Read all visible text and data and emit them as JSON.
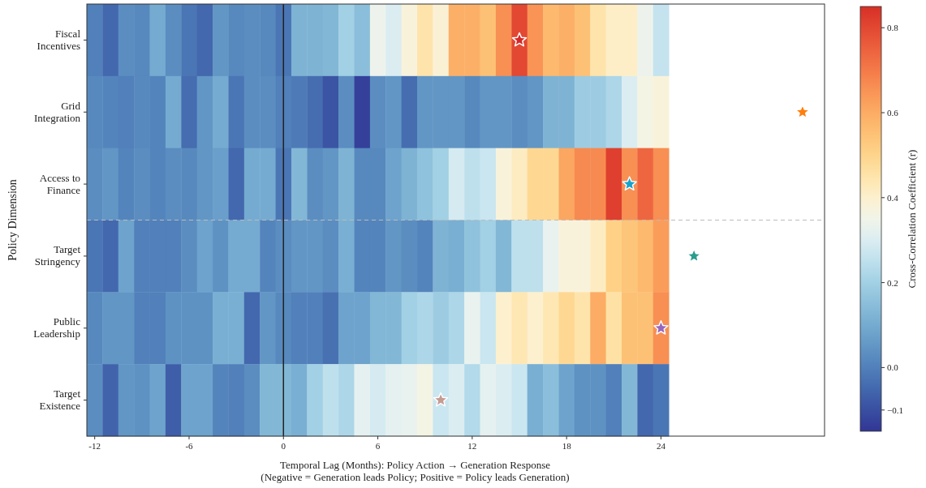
{
  "chart_data": {
    "type": "heatmap",
    "xlabel": "Temporal Lag (Months): Policy Action → Generation Response\n(Negative = Generation leads Policy; Positive = Policy leads Generation)",
    "ylabel": "Policy Dimension",
    "clabel": "Cross-Correlation Coefficient (r)",
    "x": [
      -12,
      -11,
      -10,
      -9,
      -8,
      -7,
      -6,
      -5,
      -4,
      -3,
      -2,
      -1,
      0,
      1,
      2,
      3,
      4,
      5,
      6,
      7,
      8,
      9,
      10,
      11,
      12,
      13,
      14,
      15,
      16,
      17,
      18,
      19,
      20,
      21,
      22,
      23,
      24
    ],
    "xlim": [
      -12.5,
      34.4
    ],
    "xticks": [
      -12,
      -6,
      0,
      6,
      12,
      18,
      24
    ],
    "y_categories": [
      "Fiscal\nIncentives",
      "Grid\nIntegration",
      "Access to\nFinance",
      "Target\nStringency",
      "Public\nLeadership",
      "Target\nExistence"
    ],
    "cells": [
      [
        0.0,
        -0.05,
        0.03,
        0.02,
        0.1,
        0.03,
        -0.02,
        -0.05,
        0.05,
        0.02,
        0.03,
        0.02,
        -0.02,
        0.12,
        0.12,
        0.13,
        0.2,
        0.15,
        0.34,
        0.3,
        0.38,
        0.45,
        0.39,
        0.59,
        0.59,
        0.55,
        0.66,
        0.8,
        0.65,
        0.57,
        0.59,
        0.55,
        0.45,
        0.41,
        0.41,
        0.34,
        0.26
      ],
      [
        0.02,
        0.01,
        0.0,
        0.02,
        0.01,
        0.1,
        -0.04,
        0.05,
        0.1,
        -0.02,
        0.03,
        0.03,
        0.0,
        -0.01,
        -0.04,
        -0.09,
        0.03,
        -0.13,
        0.03,
        0.05,
        -0.04,
        0.05,
        0.05,
        0.05,
        0.02,
        0.05,
        0.05,
        0.03,
        0.05,
        0.12,
        0.12,
        0.19,
        0.19,
        0.22,
        0.3,
        0.36,
        0.38
      ],
      [
        0.03,
        0.05,
        0.01,
        0.03,
        0.01,
        0.03,
        0.02,
        0.05,
        0.07,
        -0.05,
        0.1,
        0.1,
        -0.02,
        0.13,
        0.03,
        0.05,
        0.12,
        0.02,
        0.02,
        0.08,
        0.12,
        0.16,
        0.2,
        0.29,
        0.25,
        0.27,
        0.38,
        0.42,
        0.49,
        0.49,
        0.61,
        0.67,
        0.67,
        0.82,
        0.66,
        0.74,
        0.66
      ],
      [
        -0.02,
        -0.05,
        0.08,
        0.0,
        0.0,
        0.0,
        0.03,
        0.08,
        0.04,
        0.1,
        0.1,
        0.01,
        0.03,
        0.05,
        0.05,
        0.03,
        0.11,
        0.01,
        0.01,
        0.05,
        0.03,
        0.01,
        0.12,
        0.11,
        0.16,
        0.2,
        0.13,
        0.25,
        0.25,
        0.33,
        0.38,
        0.38,
        0.42,
        0.51,
        0.54,
        0.57,
        0.63
      ],
      [
        0.02,
        0.05,
        0.05,
        0.0,
        0.0,
        0.04,
        0.04,
        0.04,
        0.11,
        0.11,
        -0.05,
        0.05,
        0.02,
        0.0,
        0.0,
        -0.03,
        0.08,
        0.08,
        0.13,
        0.13,
        0.2,
        0.22,
        0.19,
        0.22,
        0.33,
        0.27,
        0.4,
        0.44,
        0.4,
        0.44,
        0.49,
        0.45,
        0.6,
        0.46,
        0.55,
        0.55,
        0.66
      ],
      [
        0.03,
        -0.06,
        0.05,
        0.04,
        0.08,
        -0.07,
        0.08,
        0.08,
        0.01,
        0.0,
        0.03,
        0.13,
        0.13,
        0.11,
        0.2,
        0.25,
        0.22,
        0.32,
        0.29,
        0.32,
        0.33,
        0.36,
        0.27,
        0.3,
        0.23,
        0.32,
        0.3,
        0.27,
        0.11,
        0.15,
        0.08,
        0.04,
        0.04,
        0.0,
        0.13,
        -0.05,
        -0.02
      ]
    ],
    "clim": [
      -0.15,
      0.85
    ],
    "cticks": [
      {
        "value": -0.1,
        "label": "−0.1"
      },
      {
        "value": 0,
        "label": "0.0"
      },
      {
        "value": 0.2,
        "label": "0.2"
      },
      {
        "value": 0.4,
        "label": "0.4"
      },
      {
        "value": 0.6,
        "label": "0.6"
      },
      {
        "value": 0.8,
        "label": "0.8"
      }
    ],
    "series": [
      {
        "type": "scatter",
        "marker": "star",
        "x": [
          15,
          33,
          22,
          26.1,
          24,
          10
        ],
        "values": [
          0,
          1,
          2,
          3,
          4,
          5
        ],
        "colors": [
          "#d62728",
          "#ff7f0e",
          "#17a2c9",
          "#2a9d8f",
          "#9467bd",
          "#c49c94"
        ]
      }
    ],
    "ref_lines": [
      {
        "axis": "x",
        "value": 0,
        "color": "#222222",
        "line_style": "solid"
      }
    ]
  }
}
